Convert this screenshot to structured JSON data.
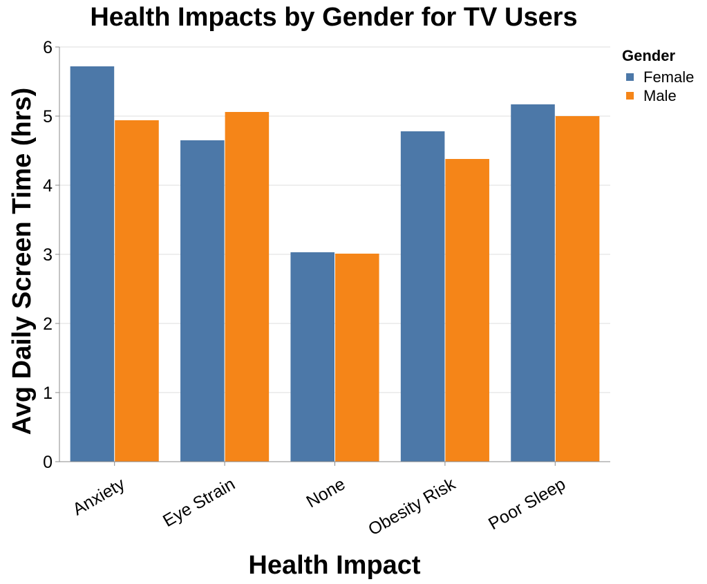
{
  "chart_data": {
    "type": "bar",
    "title": "Health Impacts by Gender for TV Users",
    "xlabel": "Health Impact",
    "ylabel": "Avg Daily Screen Time (hrs)",
    "categories": [
      "Anxiety",
      "Eye Strain",
      "None",
      "Obesity Risk",
      "Poor Sleep"
    ],
    "series": [
      {
        "name": "Female",
        "color": "#4c78a8",
        "values": [
          5.72,
          4.65,
          3.03,
          4.78,
          5.17
        ]
      },
      {
        "name": "Male",
        "color": "#f58518",
        "values": [
          4.94,
          5.06,
          3.01,
          4.38,
          5.0
        ]
      }
    ],
    "ylim": [
      0,
      6
    ],
    "yticks": [
      "0",
      "1",
      "2",
      "3",
      "4",
      "5",
      "6"
    ],
    "grid": true,
    "legend": {
      "title": "Gender",
      "position": "top-right"
    }
  }
}
